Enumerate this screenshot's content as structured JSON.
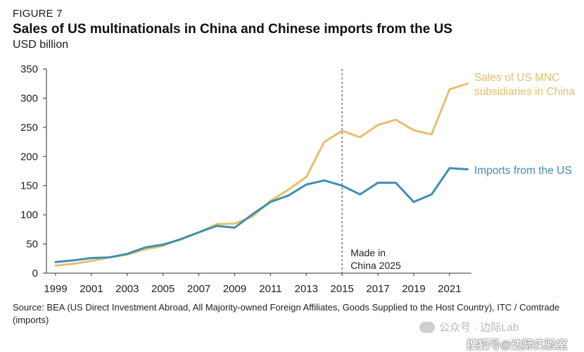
{
  "figure_label": "FIGURE 7",
  "title": "Sales of US multinationals in China and Chinese imports from the US",
  "subtitle": "USD billion",
  "source": "Source: BEA (US Direct Investment Abroad, All Majority-owned Foreign Affiliates, Goods Supplied to the Host Country), ITC / Comtrade (imports)",
  "watermark_text": "公众号 · 边际Lab",
  "watermark_text2": "搜狐号@边际实验室",
  "colors": {
    "sales": "#E8BE6A",
    "imports": "#3E8FB0",
    "axis": "#333333",
    "reference_line": "#7a7a7a"
  },
  "chart_data": {
    "type": "line",
    "title": "Sales of US multinationals in China and Chinese imports from the US",
    "ylabel": "USD billion",
    "ylim": [
      0,
      350
    ],
    "y_ticks": [
      0,
      50,
      100,
      150,
      200,
      250,
      300,
      350
    ],
    "x_tick_labels": [
      "1999",
      "2001",
      "2003",
      "2005",
      "2007",
      "2009",
      "2011",
      "2013",
      "2015",
      "2017",
      "2019",
      "2021"
    ],
    "x": [
      1999,
      2000,
      2001,
      2002,
      2003,
      2004,
      2005,
      2006,
      2007,
      2008,
      2009,
      2010,
      2011,
      2012,
      2013,
      2014,
      2015,
      2016,
      2017,
      2018,
      2019,
      2020,
      2021,
      2022
    ],
    "series": [
      {
        "name": "Sales of US MNC subsidiaries in China",
        "label_lines": [
          "Sales of US MNC",
          "subsidiaries in China"
        ],
        "color": "#E8BE6A",
        "values": [
          13,
          16,
          21,
          27,
          32,
          41,
          47,
          59,
          70,
          84,
          85,
          97,
          124,
          143,
          165,
          225,
          244,
          233,
          254,
          263,
          245,
          238,
          315,
          325
        ]
      },
      {
        "name": "Imports from the US",
        "label_lines": [
          "Imports from the US"
        ],
        "color": "#3E8FB0",
        "values": [
          19,
          22,
          26,
          27,
          33,
          44,
          49,
          58,
          70,
          81,
          78,
          101,
          122,
          133,
          152,
          159,
          150,
          135,
          155,
          155,
          122,
          135,
          180,
          178
        ]
      }
    ],
    "annotations": [
      {
        "x": 2015,
        "label_lines": [
          "Made in",
          "China 2025"
        ],
        "style": "dashed vertical line"
      }
    ],
    "grid": false,
    "legend": "inline labels at right end of lines"
  }
}
